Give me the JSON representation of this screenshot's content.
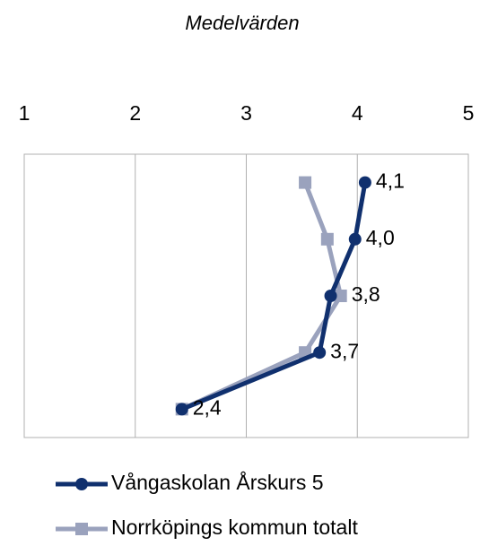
{
  "chart_data": {
    "type": "line",
    "title": "Medelvärden",
    "categories": [
      null,
      null,
      null,
      null,
      null
    ],
    "xlim": [
      1,
      5
    ],
    "xticks": [
      1,
      2,
      3,
      4,
      5
    ],
    "grid": true,
    "legend": "bottom",
    "series": [
      {
        "name": "Vångaskolan Årskurs 5",
        "color": "#10306e",
        "marker": "circle",
        "values": [
          4.07,
          3.98,
          3.76,
          3.66,
          2.42
        ],
        "value_labels": [
          "4,1",
          "4,0",
          "3,8",
          "3,7",
          "2,4"
        ]
      },
      {
        "name": "Norrköpings kommun totalt",
        "color": "#9aa2bd",
        "marker": "square",
        "values": [
          3.53,
          3.73,
          3.85,
          3.53,
          2.42
        ]
      }
    ]
  }
}
